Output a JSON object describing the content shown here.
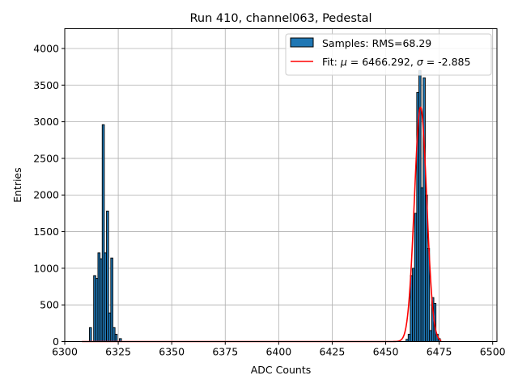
{
  "chart_data": {
    "type": "bar",
    "title": "Run 410, channel063, Pedestal",
    "xlabel": "ADC Counts",
    "ylabel": "Entries",
    "xlim": [
      6300,
      6502
    ],
    "ylim": [
      0,
      4270
    ],
    "xticks": [
      6300,
      6325,
      6350,
      6375,
      6400,
      6425,
      6450,
      6475,
      6500
    ],
    "yticks": [
      0,
      500,
      1000,
      1500,
      2000,
      2500,
      3000,
      3500,
      4000
    ],
    "grid": true,
    "legend_position": "top-right",
    "colors": {
      "bar_fill": "#1f77b4",
      "bar_edge": "#000000",
      "fit_line": "#ff0000",
      "grid": "#b0b0b0"
    },
    "series": [
      {
        "name": "Samples: RMS=68.29",
        "type": "histogram",
        "bin_width": 1,
        "bins": [
          {
            "x": 6312,
            "y": 190
          },
          {
            "x": 6314,
            "y": 900
          },
          {
            "x": 6315,
            "y": 860
          },
          {
            "x": 6316,
            "y": 1210
          },
          {
            "x": 6317,
            "y": 1130
          },
          {
            "x": 6318,
            "y": 2960
          },
          {
            "x": 6319,
            "y": 1210
          },
          {
            "x": 6320,
            "y": 1780
          },
          {
            "x": 6321,
            "y": 390
          },
          {
            "x": 6322,
            "y": 1140
          },
          {
            "x": 6323,
            "y": 190
          },
          {
            "x": 6324,
            "y": 100
          },
          {
            "x": 6326,
            "y": 40
          },
          {
            "x": 6460,
            "y": 30
          },
          {
            "x": 6461,
            "y": 100
          },
          {
            "x": 6462,
            "y": 900
          },
          {
            "x": 6463,
            "y": 1000
          },
          {
            "x": 6464,
            "y": 1750
          },
          {
            "x": 6465,
            "y": 3400
          },
          {
            "x": 6466,
            "y": 3700
          },
          {
            "x": 6467,
            "y": 2100
          },
          {
            "x": 6468,
            "y": 3600
          },
          {
            "x": 6469,
            "y": 2000
          },
          {
            "x": 6470,
            "y": 1270
          },
          {
            "x": 6471,
            "y": 150
          },
          {
            "x": 6472,
            "y": 600
          },
          {
            "x": 6473,
            "y": 520
          },
          {
            "x": 6474,
            "y": 100
          },
          {
            "x": 6475,
            "y": 40
          }
        ]
      },
      {
        "name": "Fit: μ = 6466.292, σ = -2.885",
        "type": "gaussian_line",
        "mu": 6466.292,
        "sigma": 2.885,
        "amplitude": 3200,
        "x_range": [
          6308,
          6476
        ]
      }
    ],
    "legend": {
      "samples_label": "Samples: RMS=68.29",
      "fit_prefix": "Fit: ",
      "mu_symbol": "μ",
      "fit_mid": " = 6466.292, ",
      "sigma_symbol": "σ",
      "fit_suffix": " = -2.885"
    }
  }
}
